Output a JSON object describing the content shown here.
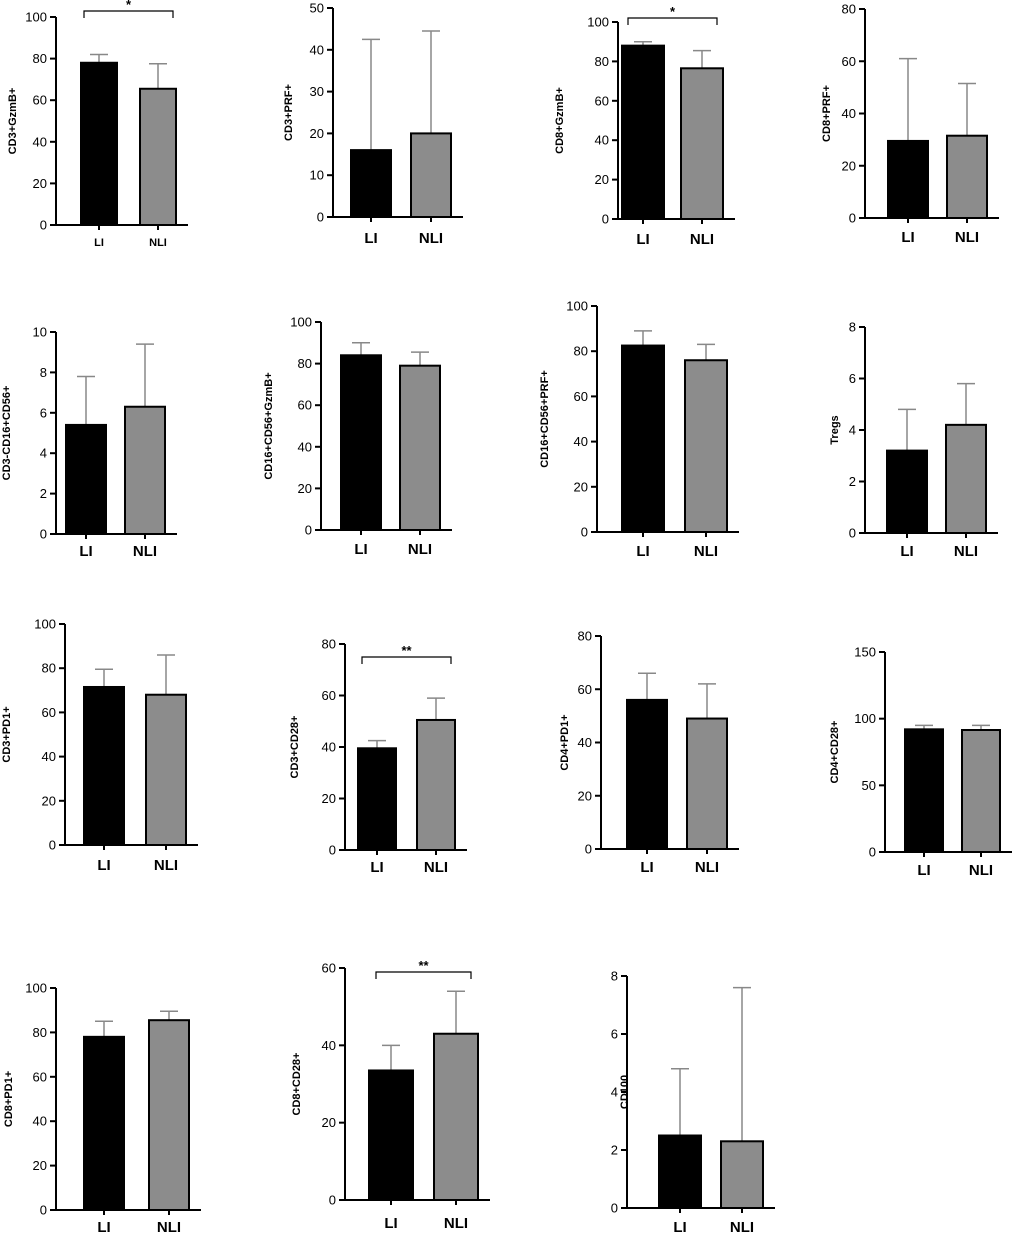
{
  "colors": {
    "bar_li": "#000000",
    "bar_nli": "#8c8c8c",
    "axis": "#000000",
    "error_bar": "#888888"
  },
  "chart_data": [
    {
      "type": "bar",
      "ylabel": "CD3+GzmB+",
      "categories": [
        "LI",
        "NLI"
      ],
      "values": [
        78,
        65.5
      ],
      "errors": [
        4,
        12
      ],
      "ylim": [
        0,
        100
      ],
      "yticks": [
        0,
        20,
        40,
        60,
        80,
        100
      ],
      "significance": "*"
    },
    {
      "type": "bar",
      "ylabel": "CD3+PRF+",
      "categories": [
        "LI",
        "NLI"
      ],
      "values": [
        16,
        20
      ],
      "errors": [
        26.5,
        24.5
      ],
      "ylim": [
        0,
        50
      ],
      "yticks": [
        0,
        10,
        20,
        30,
        40,
        50
      ],
      "significance": ""
    },
    {
      "type": "bar",
      "ylabel": "CD8+GzmB+",
      "categories": [
        "LI",
        "NLI"
      ],
      "values": [
        88,
        76.5
      ],
      "errors": [
        2,
        9
      ],
      "ylim": [
        0,
        100
      ],
      "yticks": [
        0,
        20,
        40,
        60,
        80,
        100
      ],
      "significance": "*"
    },
    {
      "type": "bar",
      "ylabel": "CD8+PRF+",
      "categories": [
        "LI",
        "NLI"
      ],
      "values": [
        29.5,
        31.5
      ],
      "errors": [
        31.5,
        20
      ],
      "ylim": [
        0,
        80
      ],
      "yticks": [
        0,
        20,
        40,
        60,
        80
      ],
      "significance": ""
    },
    {
      "type": "bar",
      "ylabel": "CD3-CD16+CD56+",
      "categories": [
        "LI",
        "NLI"
      ],
      "values": [
        5.4,
        6.3
      ],
      "errors": [
        2.4,
        3.1
      ],
      "ylim": [
        0,
        10
      ],
      "yticks": [
        0,
        2,
        4,
        6,
        8,
        10
      ],
      "significance": ""
    },
    {
      "type": "bar",
      "ylabel": "CD16+CD56+GzmB+",
      "categories": [
        "LI",
        "NLI"
      ],
      "values": [
        84,
        79
      ],
      "errors": [
        6,
        6.5
      ],
      "ylim": [
        0,
        100
      ],
      "yticks": [
        0,
        20,
        40,
        60,
        80,
        100
      ],
      "significance": ""
    },
    {
      "type": "bar",
      "ylabel": "CD16+CD56+PRF+",
      "categories": [
        "LI",
        "NLI"
      ],
      "values": [
        82.5,
        76
      ],
      "errors": [
        6.5,
        7
      ],
      "ylim": [
        0,
        100
      ],
      "yticks": [
        0,
        20,
        40,
        60,
        80,
        100
      ],
      "significance": ""
    },
    {
      "type": "bar",
      "ylabel": "Tregs",
      "categories": [
        "LI",
        "NLI"
      ],
      "values": [
        3.2,
        4.2
      ],
      "errors": [
        1.6,
        1.6
      ],
      "ylim": [
        0,
        8
      ],
      "yticks": [
        0,
        2,
        4,
        6,
        8
      ],
      "significance": ""
    },
    {
      "type": "bar",
      "ylabel": "CD3+PD1+",
      "categories": [
        "LI",
        "NLI"
      ],
      "values": [
        71.5,
        68
      ],
      "errors": [
        8,
        18
      ],
      "ylim": [
        0,
        100
      ],
      "yticks": [
        0,
        20,
        40,
        60,
        80,
        100
      ],
      "significance": ""
    },
    {
      "type": "bar",
      "ylabel": "CD3+CD28+",
      "categories": [
        "LI",
        "NLI"
      ],
      "values": [
        39.5,
        50.5
      ],
      "errors": [
        3,
        8.5
      ],
      "ylim": [
        0,
        80
      ],
      "yticks": [
        0,
        20,
        40,
        60,
        80
      ],
      "significance": "**"
    },
    {
      "type": "bar",
      "ylabel": "CD4+PD1+",
      "categories": [
        "LI",
        "NLI"
      ],
      "values": [
        56,
        49
      ],
      "errors": [
        10,
        13
      ],
      "ylim": [
        0,
        80
      ],
      "yticks": [
        0,
        20,
        40,
        60,
        80
      ],
      "significance": ""
    },
    {
      "type": "bar",
      "ylabel": "CD4+CD28+",
      "categories": [
        "LI",
        "NLI"
      ],
      "values": [
        92,
        91.5
      ],
      "errors": [
        3,
        3.5
      ],
      "ylim": [
        0,
        150
      ],
      "yticks": [
        0,
        50,
        100,
        150
      ],
      "significance": ""
    },
    {
      "type": "bar",
      "ylabel": "CD8+PD1+",
      "categories": [
        "LI",
        "NLI"
      ],
      "values": [
        78,
        85.5
      ],
      "errors": [
        7,
        4
      ],
      "ylim": [
        0,
        100
      ],
      "yticks": [
        0,
        20,
        40,
        60,
        80,
        100
      ],
      "significance": ""
    },
    {
      "type": "bar",
      "ylabel": "CD8+CD28+",
      "categories": [
        "LI",
        "NLI"
      ],
      "values": [
        33.5,
        43
      ],
      "errors": [
        6.5,
        11
      ],
      "ylim": [
        0,
        60
      ],
      "yticks": [
        0,
        20,
        40,
        60
      ],
      "significance": "**"
    },
    {
      "type": "bar",
      "ylabel": "CD100",
      "categories": [
        "LI",
        "NLI"
      ],
      "values": [
        2.5,
        2.3
      ],
      "errors": [
        2.3,
        5.3
      ],
      "ylim": [
        0,
        8
      ],
      "yticks": [
        0,
        2,
        4,
        6,
        8
      ],
      "significance": ""
    }
  ]
}
